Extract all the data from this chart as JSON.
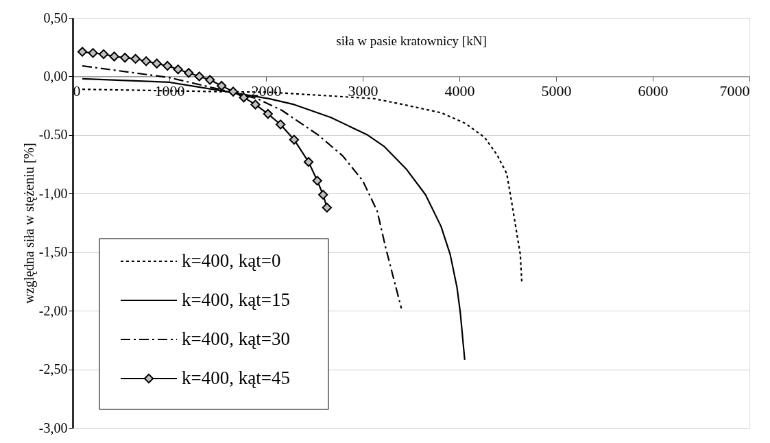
{
  "chart_data": {
    "type": "line",
    "xlabel": "siła w pasie kratownicy [kN]",
    "ylabel": "względna siła w stężeniu [%]",
    "xlim": [
      0,
      7000
    ],
    "xticks": [
      0,
      1000,
      2000,
      3000,
      4000,
      5000,
      6000,
      7000
    ],
    "ylim": [
      -3,
      0.5
    ],
    "yticks": [
      {
        "value": 0.5,
        "label": "0,50"
      },
      {
        "value": 0,
        "label": "0,00"
      },
      {
        "value": -0.5,
        "label": "-0.50"
      },
      {
        "value": -1,
        "label": "-1,00"
      },
      {
        "value": -1.5,
        "label": "-1,50"
      },
      {
        "value": -2,
        "label": "-2,00"
      },
      {
        "value": -2.5,
        "label": "-2,50"
      },
      {
        "value": -3,
        "label": "-3,00"
      }
    ],
    "grid": "y",
    "legend": "bottom left",
    "series": [
      {
        "name": "k=400, kąt=0",
        "color": "#000000",
        "line_style": "dotted",
        "marker": "none",
        "x": [
          100,
          1520,
          2030,
          2540,
          3120,
          3420,
          3810,
          4060,
          4260,
          4390,
          4490,
          4540,
          4590,
          4630,
          4645
        ],
        "values": [
          -0.11,
          -0.13,
          -0.135,
          -0.16,
          -0.19,
          -0.24,
          -0.31,
          -0.4,
          -0.52,
          -0.67,
          -0.83,
          -1.07,
          -1.32,
          -1.52,
          -1.75
        ]
      },
      {
        "name": "k=400, kąt=15",
        "color": "#000000",
        "line_style": "solid",
        "marker": "none",
        "x": [
          100,
          1000,
          1520,
          2030,
          2290,
          2670,
          3050,
          3225,
          3450,
          3650,
          3810,
          3905,
          3975,
          4010,
          4055
        ],
        "values": [
          -0.02,
          -0.05,
          -0.12,
          -0.19,
          -0.24,
          -0.35,
          -0.5,
          -0.6,
          -0.79,
          -1.01,
          -1.28,
          -1.52,
          -1.8,
          -2.02,
          -2.42
        ]
      },
      {
        "name": "k=400, kąt=30",
        "color": "#000000",
        "line_style": "dashed",
        "marker": "none",
        "x": [
          100,
          1000,
          1520,
          1910,
          2165,
          2540,
          2795,
          3000,
          3150,
          3240,
          3400
        ],
        "values": [
          0.09,
          -0.01,
          -0.11,
          -0.19,
          -0.29,
          -0.5,
          -0.68,
          -0.89,
          -1.15,
          -1.47,
          -1.98
        ]
      },
      {
        "name": "k=400, kąt=45",
        "color": "#000000",
        "line_style": "solid",
        "marker": "diamond",
        "x": [
          100,
          210,
          320,
          430,
          540,
          650,
          760,
          870,
          980,
          1090,
          1200,
          1310,
          1420,
          1540,
          1660,
          1770,
          1890,
          2020,
          2150,
          2290,
          2440,
          2530,
          2590,
          2630
        ],
        "values": [
          0.21,
          0.2,
          0.19,
          0.17,
          0.16,
          0.15,
          0.13,
          0.11,
          0.09,
          0.06,
          0.03,
          0.0,
          -0.03,
          -0.08,
          -0.13,
          -0.18,
          -0.24,
          -0.32,
          -0.41,
          -0.54,
          -0.73,
          -0.89,
          -1.01,
          -1.12
        ]
      }
    ]
  }
}
